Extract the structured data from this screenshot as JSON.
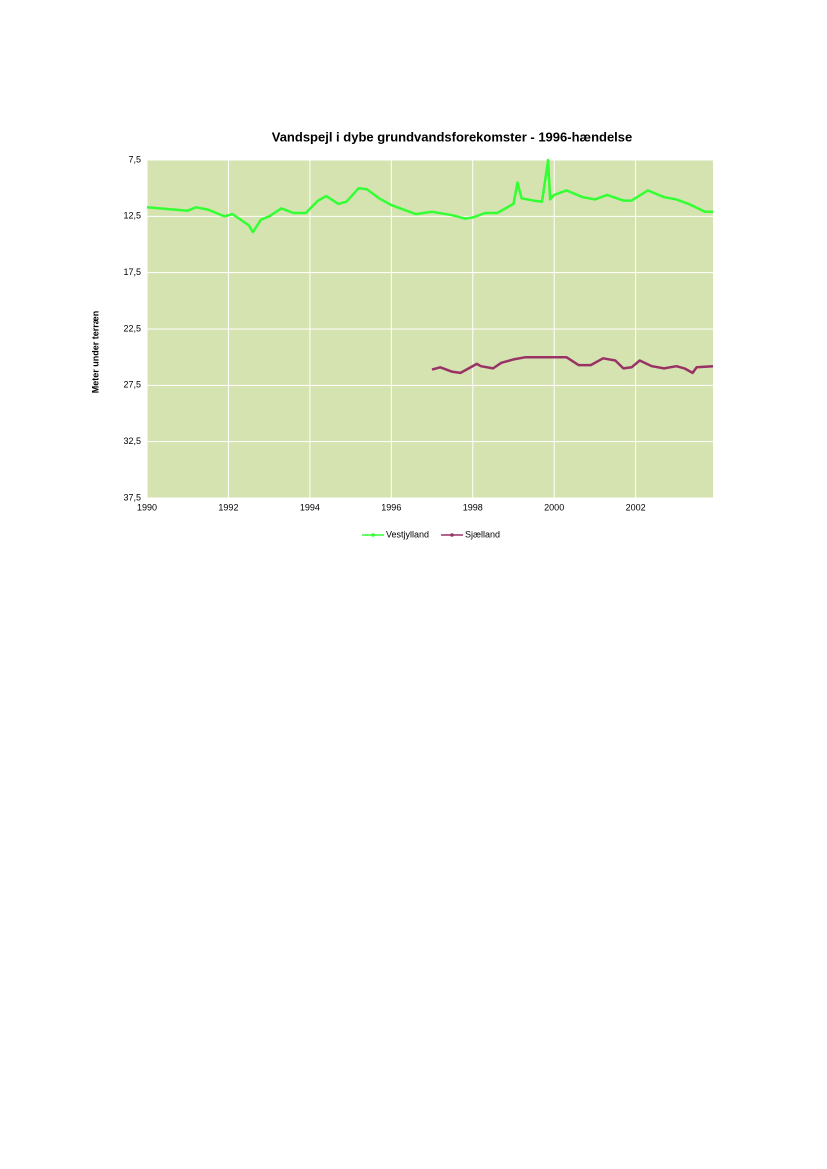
{
  "chart_data": {
    "type": "line",
    "title": "Vandspejl i dybe grundvandsforekomster - 1996-hændelse",
    "y_label": "Meter under terræn",
    "xlim": [
      1990,
      2003.9
    ],
    "xticks": [
      1990,
      1992,
      1994,
      1996,
      1998,
      2000,
      2002
    ],
    "ylim": [
      7.5,
      37.5
    ],
    "y_inverted": true,
    "yticks": [
      {
        "value": 7.5,
        "label": "7,5"
      },
      {
        "value": 12.5,
        "label": "12,5"
      },
      {
        "value": 17.5,
        "label": "17,5"
      },
      {
        "value": 22.5,
        "label": "22,5"
      },
      {
        "value": 27.5,
        "label": "27,5"
      },
      {
        "value": 32.5,
        "label": "32,5"
      },
      {
        "value": 37.5,
        "label": "37,5"
      }
    ],
    "grid": true,
    "plot_background": "#d4e3b0",
    "legend": "bottom",
    "series": [
      {
        "name": "Vestjylland",
        "color": "#33ff33",
        "x": [
          1990,
          1991,
          1991.2,
          1991.5,
          1991.9,
          1992.1,
          1992.5,
          1992.6,
          1992.8,
          1993.0,
          1993.3,
          1993.6,
          1993.9,
          1994.2,
          1994.4,
          1994.7,
          1994.9,
          1995.2,
          1995.4,
          1995.7,
          1996.0,
          1996.3,
          1996.6,
          1997.0,
          1997.5,
          1997.8,
          1998.0,
          1998.3,
          1998.6,
          1999.0,
          1999.1,
          1999.2,
          1999.5,
          1999.7,
          1999.85,
          1999.9,
          2000.0,
          2000.3,
          2000.7,
          2001.0,
          2001.3,
          2001.7,
          2001.9,
          2002.3,
          2002.7,
          2003.0,
          2003.3,
          2003.7,
          2003.9
        ],
        "values": [
          11.7,
          12.0,
          11.7,
          11.9,
          12.5,
          12.3,
          13.3,
          13.9,
          12.8,
          12.5,
          11.8,
          12.2,
          12.2,
          11.1,
          10.7,
          11.4,
          11.2,
          10.0,
          10.1,
          10.9,
          11.5,
          11.9,
          12.3,
          12.1,
          12.4,
          12.7,
          12.6,
          12.2,
          12.2,
          11.4,
          9.5,
          10.9,
          11.1,
          11.2,
          7.5,
          11.0,
          10.6,
          10.2,
          10.8,
          11.0,
          10.6,
          11.1,
          11.1,
          10.2,
          10.8,
          11.0,
          11.4,
          12.1,
          12.1
        ]
      },
      {
        "name": "Sjælland",
        "color": "#993366",
        "x": [
          1997.0,
          1997.2,
          1997.5,
          1997.7,
          1997.9,
          1998.1,
          1998.2,
          1998.5,
          1998.7,
          1999.0,
          1999.3,
          2000.3,
          2000.6,
          2000.9,
          2001.2,
          2001.5,
          2001.7,
          2001.9,
          2002.1,
          2002.4,
          2002.7,
          2003.0,
          2003.2,
          2003.4,
          2003.5,
          2003.9
        ],
        "values": [
          26.1,
          25.9,
          26.3,
          26.4,
          26.0,
          25.6,
          25.8,
          26.0,
          25.5,
          25.2,
          25.0,
          25.0,
          25.7,
          25.7,
          25.1,
          25.3,
          26.0,
          25.9,
          25.3,
          25.8,
          26.0,
          25.8,
          26.0,
          26.4,
          25.9,
          25.8
        ]
      }
    ]
  }
}
